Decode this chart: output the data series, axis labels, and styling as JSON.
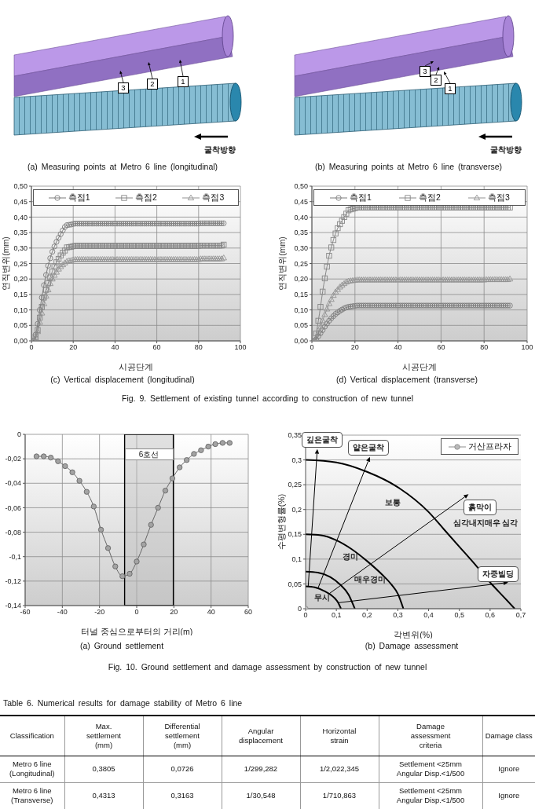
{
  "chart_data": [
    {
      "type": "other",
      "title": "(a) Measuring points at Metro 6 line (longitudinal)",
      "annotations": [
        "3",
        "2",
        "1",
        "굴착방향"
      ]
    },
    {
      "type": "other",
      "title": "(b) Measuring points at Metro 6 line (transverse)",
      "annotations": [
        "3",
        "2",
        "1",
        "굴착방향"
      ]
    },
    {
      "type": "line",
      "title": "(c) Vertical displacement (longitudinal)",
      "xlabel": "시공단계",
      "ylabel": "연직변위(mm)",
      "annotations": [
        "Fig. 9. Settlement of existing tunnel according to construction of new tunnel"
      ],
      "x": [
        1,
        2,
        3,
        4,
        5,
        6,
        7,
        8,
        9,
        10,
        11,
        12,
        13,
        14,
        15,
        16,
        17,
        18,
        19,
        20,
        21,
        22,
        23,
        24,
        25,
        26,
        27,
        28,
        29,
        30,
        31,
        32,
        33,
        34,
        35,
        36,
        37,
        38,
        39,
        40,
        41,
        42,
        43,
        44,
        45,
        46,
        47,
        48,
        49,
        50,
        51,
        52,
        53,
        54,
        55,
        56,
        57,
        58,
        59,
        60,
        61,
        62,
        63,
        64,
        65,
        66,
        67,
        68,
        69,
        70,
        71,
        72,
        73,
        74,
        75,
        76,
        77,
        78,
        79,
        80,
        81,
        82,
        83,
        84,
        85,
        86,
        87,
        88,
        89,
        90,
        91,
        92
      ],
      "series": [
        {
          "name": "측점1",
          "color": "#7a7a7a",
          "marker": "circle",
          "values": [
            0,
            0.02,
            0.055,
            0.1,
            0.14,
            0.18,
            0.213,
            0.243,
            0.267,
            0.288,
            0.305,
            0.32,
            0.333,
            0.345,
            0.357,
            0.368,
            0.374,
            0.375,
            0.376,
            0.378,
            0.379,
            0.379,
            0.379,
            0.379,
            0.379,
            0.379,
            0.379,
            0.379,
            0.379,
            0.379,
            0.379,
            0.379,
            0.379,
            0.379,
            0.379,
            0.379,
            0.379,
            0.379,
            0.379,
            0.379,
            0.379,
            0.379,
            0.379,
            0.379,
            0.379,
            0.379,
            0.379,
            0.379,
            0.379,
            0.379,
            0.379,
            0.379,
            0.379,
            0.379,
            0.379,
            0.379,
            0.379,
            0.379,
            0.379,
            0.379,
            0.379,
            0.379,
            0.379,
            0.379,
            0.379,
            0.379,
            0.379,
            0.379,
            0.379,
            0.379,
            0.379,
            0.379,
            0.379,
            0.379,
            0.379,
            0.379,
            0.379,
            0.379,
            0.379,
            0.379,
            0.38,
            0.38,
            0.38,
            0.38,
            0.38,
            0.38,
            0.38,
            0.38,
            0.38,
            0.38,
            0.38,
            0.38
          ]
        },
        {
          "name": "측점2",
          "color": "#868686",
          "marker": "square",
          "values": [
            0,
            0.012,
            0.035,
            0.075,
            0.11,
            0.14,
            0.165,
            0.186,
            0.205,
            0.224,
            0.241,
            0.254,
            0.265,
            0.276,
            0.285,
            0.292,
            0.302,
            0.303,
            0.304,
            0.306,
            0.307,
            0.307,
            0.307,
            0.307,
            0.307,
            0.307,
            0.307,
            0.307,
            0.307,
            0.307,
            0.307,
            0.307,
            0.307,
            0.307,
            0.307,
            0.307,
            0.307,
            0.307,
            0.307,
            0.307,
            0.307,
            0.307,
            0.307,
            0.307,
            0.307,
            0.307,
            0.307,
            0.307,
            0.307,
            0.307,
            0.307,
            0.307,
            0.307,
            0.307,
            0.307,
            0.307,
            0.307,
            0.307,
            0.307,
            0.307,
            0.307,
            0.307,
            0.307,
            0.307,
            0.307,
            0.307,
            0.307,
            0.307,
            0.307,
            0.307,
            0.307,
            0.307,
            0.307,
            0.307,
            0.307,
            0.307,
            0.307,
            0.307,
            0.307,
            0.307,
            0.308,
            0.308,
            0.308,
            0.308,
            0.308,
            0.308,
            0.308,
            0.308,
            0.308,
            0.308,
            0.308,
            0.311
          ]
        },
        {
          "name": "측점3",
          "color": "#939393",
          "marker": "triangle",
          "values": [
            0,
            0.01,
            0.03,
            0.06,
            0.09,
            0.12,
            0.145,
            0.165,
            0.185,
            0.2,
            0.212,
            0.222,
            0.232,
            0.24,
            0.246,
            0.252,
            0.257,
            0.259,
            0.26,
            0.262,
            0.263,
            0.263,
            0.263,
            0.263,
            0.263,
            0.263,
            0.263,
            0.263,
            0.263,
            0.263,
            0.263,
            0.263,
            0.263,
            0.263,
            0.263,
            0.263,
            0.263,
            0.263,
            0.263,
            0.263,
            0.263,
            0.263,
            0.263,
            0.263,
            0.263,
            0.263,
            0.263,
            0.263,
            0.263,
            0.263,
            0.263,
            0.263,
            0.263,
            0.263,
            0.263,
            0.263,
            0.263,
            0.263,
            0.263,
            0.263,
            0.263,
            0.263,
            0.263,
            0.263,
            0.263,
            0.263,
            0.263,
            0.263,
            0.263,
            0.263,
            0.263,
            0.263,
            0.263,
            0.263,
            0.263,
            0.263,
            0.263,
            0.263,
            0.263,
            0.263,
            0.265,
            0.265,
            0.265,
            0.265,
            0.265,
            0.265,
            0.265,
            0.265,
            0.265,
            0.265,
            0.265,
            0.268
          ]
        }
      ],
      "xlim": [
        0,
        100
      ],
      "xticks": [
        0,
        20,
        40,
        60,
        80,
        100
      ],
      "ylim": [
        0,
        0.5
      ],
      "yticks": [
        {
          "value": 0,
          "label": "0,00"
        },
        {
          "value": 0.05,
          "label": "0,05"
        },
        {
          "value": 0.1,
          "label": "0,10"
        },
        {
          "value": 0.15,
          "label": "0,15"
        },
        {
          "value": 0.2,
          "label": "0,20"
        },
        {
          "value": 0.25,
          "label": "0,25"
        },
        {
          "value": 0.3,
          "label": "0,30"
        },
        {
          "value": 0.35,
          "label": "0,35"
        },
        {
          "value": 0.4,
          "label": "0,40"
        },
        {
          "value": 0.45,
          "label": "0,45"
        },
        {
          "value": 0.5,
          "label": "0,50"
        }
      ],
      "grid": true,
      "legend": "top"
    },
    {
      "type": "line",
      "title": "(d) Vertical displacement (transverse)",
      "xlabel": "시공단계",
      "ylabel": "연직변위(mm)",
      "x": [
        1,
        2,
        3,
        4,
        5,
        6,
        7,
        8,
        9,
        10,
        11,
        12,
        13,
        14,
        15,
        16,
        17,
        18,
        19,
        20,
        21,
        22,
        23,
        24,
        25,
        26,
        27,
        28,
        29,
        30,
        31,
        32,
        33,
        34,
        35,
        36,
        37,
        38,
        39,
        40,
        41,
        42,
        43,
        44,
        45,
        46,
        47,
        48,
        49,
        50,
        51,
        52,
        53,
        54,
        55,
        56,
        57,
        58,
        59,
        60,
        61,
        62,
        63,
        64,
        65,
        66,
        67,
        68,
        69,
        70,
        71,
        72,
        73,
        74,
        75,
        76,
        77,
        78,
        79,
        80,
        81,
        82,
        83,
        84,
        85,
        86,
        87,
        88,
        89,
        90,
        91,
        92
      ],
      "series": [
        {
          "name": "측점1",
          "color": "#7a7a7a",
          "marker": "circle",
          "values": [
            0,
            0.005,
            0.015,
            0.025,
            0.035,
            0.046,
            0.056,
            0.065,
            0.073,
            0.08,
            0.087,
            0.092,
            0.097,
            0.101,
            0.105,
            0.108,
            0.11,
            0.111,
            0.112,
            0.113,
            0.114,
            0.114,
            0.114,
            0.114,
            0.114,
            0.114,
            0.114,
            0.114,
            0.114,
            0.114,
            0.114,
            0.114,
            0.114,
            0.114,
            0.114,
            0.114,
            0.114,
            0.114,
            0.114,
            0.114,
            0.114,
            0.114,
            0.114,
            0.114,
            0.114,
            0.114,
            0.114,
            0.114,
            0.114,
            0.114,
            0.114,
            0.114,
            0.114,
            0.114,
            0.114,
            0.114,
            0.114,
            0.114,
            0.114,
            0.114,
            0.114,
            0.114,
            0.114,
            0.114,
            0.114,
            0.114,
            0.114,
            0.114,
            0.114,
            0.114,
            0.114,
            0.114,
            0.114,
            0.114,
            0.114,
            0.114,
            0.114,
            0.114,
            0.114,
            0.114,
            0.114,
            0.114,
            0.114,
            0.114,
            0.114,
            0.114,
            0.114,
            0.114,
            0.114,
            0.114,
            0.114,
            0.114
          ]
        },
        {
          "name": "측점2",
          "color": "#868686",
          "marker": "square",
          "values": [
            0,
            0.024,
            0.065,
            0.11,
            0.159,
            0.202,
            0.24,
            0.275,
            0.302,
            0.326,
            0.347,
            0.364,
            0.377,
            0.388,
            0.4,
            0.411,
            0.422,
            0.425,
            0.427,
            0.429,
            0.431,
            0.431,
            0.431,
            0.431,
            0.431,
            0.431,
            0.431,
            0.431,
            0.431,
            0.431,
            0.431,
            0.431,
            0.431,
            0.431,
            0.431,
            0.431,
            0.431,
            0.431,
            0.431,
            0.431,
            0.431,
            0.431,
            0.431,
            0.431,
            0.431,
            0.431,
            0.431,
            0.431,
            0.431,
            0.431,
            0.431,
            0.431,
            0.431,
            0.431,
            0.431,
            0.431,
            0.431,
            0.431,
            0.431,
            0.431,
            0.431,
            0.431,
            0.431,
            0.431,
            0.431,
            0.431,
            0.431,
            0.431,
            0.431,
            0.431,
            0.431,
            0.431,
            0.431,
            0.431,
            0.431,
            0.431,
            0.431,
            0.431,
            0.431,
            0.431,
            0.431,
            0.431,
            0.431,
            0.431,
            0.431,
            0.431,
            0.431,
            0.431,
            0.431,
            0.431,
            0.431,
            0.431
          ]
        },
        {
          "name": "측점3",
          "color": "#939393",
          "marker": "triangle",
          "values": [
            0,
            0.008,
            0.025,
            0.045,
            0.065,
            0.085,
            0.103,
            0.12,
            0.134,
            0.147,
            0.158,
            0.166,
            0.174,
            0.18,
            0.185,
            0.19,
            0.193,
            0.194,
            0.195,
            0.196,
            0.197,
            0.197,
            0.197,
            0.197,
            0.197,
            0.197,
            0.197,
            0.197,
            0.197,
            0.197,
            0.197,
            0.197,
            0.197,
            0.197,
            0.197,
            0.197,
            0.197,
            0.197,
            0.197,
            0.197,
            0.197,
            0.197,
            0.197,
            0.197,
            0.197,
            0.197,
            0.197,
            0.197,
            0.197,
            0.197,
            0.197,
            0.197,
            0.197,
            0.197,
            0.197,
            0.197,
            0.197,
            0.197,
            0.197,
            0.197,
            0.197,
            0.197,
            0.197,
            0.197,
            0.197,
            0.197,
            0.197,
            0.197,
            0.197,
            0.197,
            0.197,
            0.197,
            0.197,
            0.197,
            0.197,
            0.197,
            0.197,
            0.197,
            0.197,
            0.197,
            0.198,
            0.198,
            0.198,
            0.198,
            0.198,
            0.198,
            0.198,
            0.198,
            0.198,
            0.198,
            0.198,
            0.2
          ]
        }
      ],
      "xlim": [
        0,
        100
      ],
      "xticks": [
        0,
        20,
        40,
        60,
        80,
        100
      ],
      "ylim": [
        0,
        0.5
      ],
      "yticks": [
        {
          "value": 0,
          "label": "0,00"
        },
        {
          "value": 0.05,
          "label": "0,05"
        },
        {
          "value": 0.1,
          "label": "0,10"
        },
        {
          "value": 0.15,
          "label": "0,15"
        },
        {
          "value": 0.2,
          "label": "0,20"
        },
        {
          "value": 0.25,
          "label": "0,25"
        },
        {
          "value": 0.3,
          "label": "0,30"
        },
        {
          "value": 0.35,
          "label": "0,35"
        },
        {
          "value": 0.4,
          "label": "0,40"
        },
        {
          "value": 0.45,
          "label": "0,45"
        },
        {
          "value": 0.5,
          "label": "0,50"
        }
      ],
      "grid": true,
      "legend": "top"
    },
    {
      "type": "line",
      "title": "(a) Ground settlement",
      "xlabel": "터널 중심으로부터의 거리(m)",
      "annotations": [
        "Fig. 10. Ground settlement and damage assessment by construction of new tunnel"
      ],
      "x": [
        -53.9,
        -50,
        -46.2,
        -42.3,
        -38.5,
        -34.6,
        -30.8,
        -26.9,
        -23.1,
        -19.2,
        -15.4,
        -11.5,
        -7.7,
        -3.8,
        0,
        3.8,
        7.7,
        11.5,
        15.4,
        19.2,
        23.1,
        26.9,
        30.8,
        34.6,
        38.5,
        42.3,
        46.2,
        50
      ],
      "values": [
        -0.018,
        -0.018,
        -0.019,
        -0.022,
        -0.026,
        -0.031,
        -0.038,
        -0.047,
        -0.059,
        -0.078,
        -0.093,
        -0.108,
        -0.116,
        -0.114,
        -0.104,
        -0.09,
        -0.074,
        -0.06,
        -0.046,
        -0.036,
        -0.027,
        -0.021,
        -0.016,
        -0.013,
        -0.01,
        -0.008,
        -0.007,
        -0.007
      ],
      "color": "#666666",
      "marker": "circle",
      "bands": [
        {
          "axis": "x",
          "from": -6.5,
          "to": 19.7,
          "label": "6호선",
          "color": "#bdbdbd"
        }
      ],
      "xlim": [
        -60,
        60
      ],
      "xticks": [
        -60,
        -40,
        -20,
        0,
        20,
        40,
        60
      ],
      "ylim": [
        -0.14,
        0
      ],
      "yticks": [
        {
          "value": -0.14,
          "label": "-0,14"
        },
        {
          "value": -0.12,
          "label": "-0,12"
        },
        {
          "value": -0.1,
          "label": "-0,1"
        },
        {
          "value": -0.08,
          "label": "-0,08"
        },
        {
          "value": -0.06,
          "label": "-0,06"
        },
        {
          "value": -0.04,
          "label": "-0,04"
        },
        {
          "value": -0.02,
          "label": "-0,02"
        },
        {
          "value": 0,
          "label": "0"
        }
      ],
      "grid": true
    },
    {
      "type": "line",
      "title": "(b) Damage assessment",
      "xlabel": "각변위(%)",
      "ylabel": "수평변형률(%)",
      "annotations": [
        "깊은굴착",
        "얕은굴착",
        "보통",
        "흙막이",
        "심각내지매우 심각",
        "경미",
        "매우경미",
        "자중빌딩",
        "무시"
      ],
      "series": [
        {
          "color": "#000000",
          "marker": "none",
          "x": [
            0,
            0.1,
            0.2,
            0.3,
            0.4,
            0.45,
            0.5,
            0.55,
            0.6,
            0.65,
            0.68
          ],
          "values": [
            0.3,
            0.295,
            0.276,
            0.245,
            0.195,
            0.16,
            0.125,
            0.09,
            0.053,
            0.02,
            0
          ]
        },
        {
          "color": "#000000",
          "marker": "none",
          "x": [
            0,
            0.05,
            0.1,
            0.15,
            0.2,
            0.25,
            0.28,
            0.3,
            0.318
          ],
          "values": [
            0.15,
            0.148,
            0.138,
            0.12,
            0.096,
            0.068,
            0.048,
            0.03,
            0
          ]
        },
        {
          "color": "#000000",
          "marker": "none",
          "x": [
            0,
            0.04,
            0.08,
            0.11,
            0.14,
            0.16
          ],
          "values": [
            0.075,
            0.073,
            0.064,
            0.05,
            0.028,
            0
          ]
        },
        {
          "color": "#000000",
          "marker": "none",
          "x": [
            0,
            0.03,
            0.06,
            0.09,
            0.105,
            0.115
          ],
          "values": [
            0.045,
            0.043,
            0.036,
            0.024,
            0.013,
            0
          ]
        },
        {
          "name": "거산프라자",
          "color": "#8c8c8c",
          "marker": "circle",
          "x": [
            0
          ],
          "values": [
            0
          ]
        }
      ],
      "xlim": [
        0,
        0.7
      ],
      "xticks": [
        {
          "value": 0,
          "label": "0"
        },
        {
          "value": 0.1,
          "label": "0,1"
        },
        {
          "value": 0.2,
          "label": "0,2"
        },
        {
          "value": 0.3,
          "label": "0,3"
        },
        {
          "value": 0.4,
          "label": "0,4"
        },
        {
          "value": 0.5,
          "label": "0,5"
        },
        {
          "value": 0.6,
          "label": "0,6"
        },
        {
          "value": 0.7,
          "label": "0,7"
        }
      ],
      "ylim": [
        0,
        0.35
      ],
      "yticks": [
        {
          "value": 0,
          "label": "0"
        },
        {
          "value": 0.05,
          "label": "0,05"
        },
        {
          "value": 0.1,
          "label": "0,1"
        },
        {
          "value": 0.15,
          "label": "0,15"
        },
        {
          "value": 0.2,
          "label": "0,2"
        },
        {
          "value": 0.25,
          "label": "0,25"
        },
        {
          "value": 0.3,
          "label": "0,3"
        },
        {
          "value": 0.35,
          "label": "0,35"
        }
      ],
      "grid": "y",
      "legend": "top right"
    },
    {
      "type": "other",
      "title": "Table 6. Numerical results for damage stability of Metro 6 line",
      "ylabel": "Classification",
      "categories": [
        "Max. settlement (mm)",
        "Differential settlement (mm)",
        "Angular displacement",
        "Horizontal strain",
        "Damage assessment criteria",
        "Damage class"
      ],
      "y_categories": [
        "Metro 6 line (Longitudinal)",
        "Metro 6 line (Transverse)"
      ],
      "cell_labels": [
        [
          "0,3805",
          "0,0726",
          "1/299,282",
          "1/2,022,345",
          "Settlement <25mm Angular Disp.<1/500",
          "Ignore"
        ],
        [
          "0,4313",
          "0,3163",
          "1/30,548",
          "1/710,863",
          "Settlement <25mm Angular Disp.<1/500",
          "Ignore"
        ]
      ]
    }
  ]
}
